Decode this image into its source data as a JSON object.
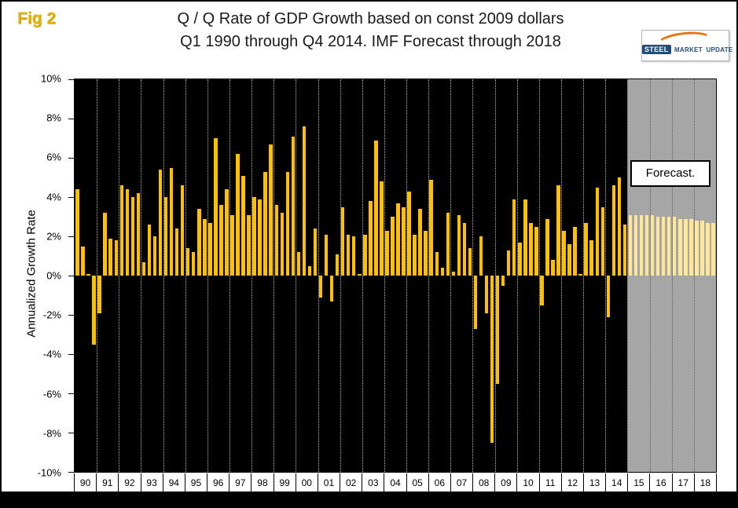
{
  "figure_label": "Fig 2",
  "title": {
    "line1": "Q / Q Rate of GDP Growth based on const 2009 dollars",
    "line2": "Q1 1990 through Q4 2014. IMF Forecast through 2018"
  },
  "logo": {
    "steel": "STEEL",
    "market": "MARKET",
    "update": "UPDATE"
  },
  "chart_data": {
    "type": "bar",
    "title": "Q / Q Rate of GDP Growth based on const 2009 dollars Q1 1990 through Q4 2014. IMF Forecast through 2018",
    "ylabel": "Annualized Growth Rate",
    "ylim": [
      -10,
      10
    ],
    "ytick_step": 2,
    "ytick_labels": [
      "10%",
      "8%",
      "6%",
      "4%",
      "2%",
      "0%",
      "-2%",
      "-4%",
      "-6%",
      "-8%",
      "-10%"
    ],
    "year_labels": [
      "90",
      "91",
      "92",
      "93",
      "94",
      "95",
      "96",
      "97",
      "98",
      "99",
      "00",
      "01",
      "02",
      "03",
      "04",
      "05",
      "06",
      "07",
      "08",
      "09",
      "10",
      "11",
      "12",
      "13",
      "14",
      "15",
      "16",
      "17",
      "18"
    ],
    "quarters_per_year": 4,
    "historical_start": "Q1 1990",
    "historical_end": "Q4 2014",
    "historical_values": [
      4.4,
      1.5,
      0.1,
      -3.5,
      -1.9,
      3.2,
      1.9,
      1.8,
      4.6,
      4.4,
      4.0,
      4.2,
      0.7,
      2.6,
      2.0,
      5.4,
      4.0,
      5.5,
      2.4,
      4.6,
      1.4,
      1.2,
      3.4,
      2.9,
      2.7,
      7.0,
      3.6,
      4.4,
      3.1,
      6.2,
      5.1,
      3.1,
      4.0,
      3.9,
      5.3,
      6.7,
      3.6,
      3.2,
      5.3,
      7.1,
      1.2,
      7.6,
      0.5,
      2.4,
      -1.1,
      2.1,
      -1.3,
      1.1,
      3.5,
      2.1,
      2.0,
      0.1,
      2.1,
      3.8,
      6.9,
      4.8,
      2.3,
      3.0,
      3.7,
      3.5,
      4.3,
      2.1,
      3.4,
      2.3,
      4.9,
      1.2,
      0.4,
      3.2,
      0.2,
      3.1,
      2.7,
      1.4,
      -2.7,
      2.0,
      -1.9,
      -8.5,
      -5.5,
      -0.5,
      1.3,
      3.9,
      1.7,
      3.9,
      2.7,
      2.5,
      -1.5,
      2.9,
      0.8,
      4.6,
      2.3,
      1.6,
      2.5,
      0.1,
      2.7,
      1.8,
      4.5,
      3.5,
      -2.1,
      4.6,
      5.0,
      2.6
    ],
    "forecast_start": "Q1 2015",
    "forecast_end": "Q4 2018",
    "forecast_values": [
      3.1,
      3.1,
      3.1,
      3.1,
      3.1,
      3.0,
      3.0,
      3.0,
      3.0,
      2.9,
      2.9,
      2.9,
      2.8,
      2.8,
      2.7,
      2.7
    ],
    "forecast_label": "Forecast.",
    "legend_position": "none",
    "grid": "vertical-dotted",
    "colors": {
      "historical_bar": "#FFC000",
      "forecast_bar": "#FFE699",
      "plot_background": "#000000",
      "forecast_background": "#A6A6A6",
      "figure_label": "#E6B400"
    }
  }
}
